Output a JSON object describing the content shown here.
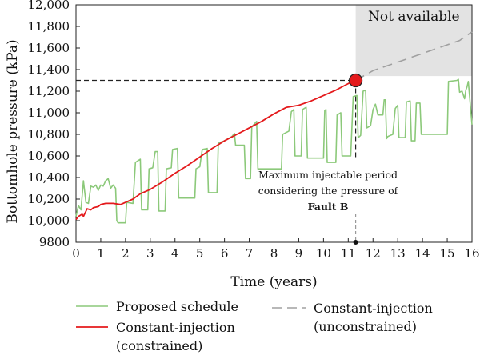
{
  "chart_data": {
    "type": "line",
    "xlabel": "Time (years)",
    "ylabel": "Bottomhole pressure (kPa)",
    "xlim": [
      0,
      16
    ],
    "ylim": [
      9800,
      12000
    ],
    "x_ticks": [
      0,
      1,
      2,
      3,
      4,
      5,
      6,
      7,
      8,
      9,
      10,
      11,
      12,
      13,
      14,
      15,
      16
    ],
    "x_tick_labels": [
      "0",
      "1",
      "2",
      "3",
      "4",
      "5",
      "6",
      "7",
      "8",
      "9",
      "10",
      "11",
      "12",
      "13",
      "14",
      "15",
      "16"
    ],
    "y_ticks": [
      9800,
      10000,
      10200,
      10400,
      10600,
      10800,
      11000,
      11200,
      11400,
      11600,
      11800,
      12000
    ],
    "y_tick_labels": [
      "9800",
      "10,000",
      "10,200",
      "10,400",
      "10,600",
      "10,800",
      "11,000",
      "11,200",
      "11,400",
      "11,600",
      "11,800",
      "12,000"
    ],
    "grid": false,
    "colors": {
      "proposed": "#8cc97a",
      "constrained": "#e41a1c",
      "unconstrained": "#a0a0a0",
      "shade": "#e3e3e3",
      "marker": "#e41a1c"
    },
    "series": [
      {
        "name": "Proposed schedule",
        "style": "solid",
        "points": [
          [
            0.0,
            10040
          ],
          [
            0.1,
            10140
          ],
          [
            0.2,
            10100
          ],
          [
            0.3,
            10370
          ],
          [
            0.4,
            10170
          ],
          [
            0.5,
            10160
          ],
          [
            0.6,
            10320
          ],
          [
            0.7,
            10310
          ],
          [
            0.8,
            10330
          ],
          [
            0.9,
            10280
          ],
          [
            1.0,
            10330
          ],
          [
            1.1,
            10320
          ],
          [
            1.2,
            10370
          ],
          [
            1.3,
            10390
          ],
          [
            1.4,
            10300
          ],
          [
            1.5,
            10330
          ],
          [
            1.6,
            10300
          ],
          [
            1.65,
            10000
          ],
          [
            1.7,
            9980
          ],
          [
            2.0,
            9980
          ],
          [
            2.05,
            10170
          ],
          [
            2.3,
            10160
          ],
          [
            2.4,
            10540
          ],
          [
            2.6,
            10570
          ],
          [
            2.65,
            10100
          ],
          [
            2.9,
            10100
          ],
          [
            2.95,
            10480
          ],
          [
            3.1,
            10490
          ],
          [
            3.2,
            10640
          ],
          [
            3.3,
            10640
          ],
          [
            3.35,
            10090
          ],
          [
            3.6,
            10090
          ],
          [
            3.65,
            10480
          ],
          [
            3.85,
            10490
          ],
          [
            3.9,
            10660
          ],
          [
            4.1,
            10670
          ],
          [
            4.15,
            10210
          ],
          [
            4.8,
            10210
          ],
          [
            4.85,
            10480
          ],
          [
            5.0,
            10500
          ],
          [
            5.1,
            10660
          ],
          [
            5.3,
            10670
          ],
          [
            5.35,
            10260
          ],
          [
            5.7,
            10260
          ],
          [
            5.75,
            10720
          ],
          [
            6.0,
            10740
          ],
          [
            6.3,
            10780
          ],
          [
            6.4,
            10810
          ],
          [
            6.45,
            10700
          ],
          [
            6.8,
            10700
          ],
          [
            6.85,
            10390
          ],
          [
            7.05,
            10390
          ],
          [
            7.1,
            10870
          ],
          [
            7.3,
            10920
          ],
          [
            7.35,
            10480
          ],
          [
            8.3,
            10480
          ],
          [
            8.35,
            10800
          ],
          [
            8.6,
            10830
          ],
          [
            8.7,
            11010
          ],
          [
            8.8,
            11030
          ],
          [
            8.85,
            10600
          ],
          [
            9.1,
            10600
          ],
          [
            9.15,
            11030
          ],
          [
            9.3,
            11050
          ],
          [
            9.35,
            10580
          ],
          [
            10.0,
            10580
          ],
          [
            10.05,
            11020
          ],
          [
            10.1,
            11030
          ],
          [
            10.15,
            10540
          ],
          [
            10.5,
            10540
          ],
          [
            10.55,
            10980
          ],
          [
            10.7,
            11000
          ],
          [
            10.75,
            10600
          ],
          [
            11.1,
            10600
          ],
          [
            11.2,
            11150
          ],
          [
            11.35,
            11160
          ],
          [
            11.4,
            10770
          ],
          [
            11.5,
            10790
          ],
          [
            11.6,
            11200
          ],
          [
            11.7,
            11210
          ],
          [
            11.75,
            10860
          ],
          [
            11.9,
            10880
          ],
          [
            12.0,
            11030
          ],
          [
            12.1,
            11080
          ],
          [
            12.2,
            10980
          ],
          [
            12.4,
            10980
          ],
          [
            12.45,
            11120
          ],
          [
            12.5,
            11120
          ],
          [
            12.55,
            10760
          ],
          [
            12.6,
            10780
          ],
          [
            12.8,
            10800
          ],
          [
            12.9,
            11040
          ],
          [
            13.0,
            11070
          ],
          [
            13.05,
            10770
          ],
          [
            13.3,
            10770
          ],
          [
            13.35,
            11100
          ],
          [
            13.5,
            11110
          ],
          [
            13.55,
            10740
          ],
          [
            13.7,
            10740
          ],
          [
            13.75,
            11090
          ],
          [
            13.9,
            11090
          ],
          [
            13.95,
            10800
          ],
          [
            15.0,
            10800
          ],
          [
            15.05,
            11290
          ],
          [
            15.4,
            11300
          ],
          [
            15.45,
            11310
          ],
          [
            15.5,
            11190
          ],
          [
            15.6,
            11200
          ],
          [
            15.7,
            11130
          ],
          [
            15.75,
            11210
          ],
          [
            15.8,
            11240
          ],
          [
            15.85,
            11290
          ],
          [
            16.0,
            10890
          ]
        ]
      },
      {
        "name": "Constant-injection (constrained)",
        "style": "solid",
        "points": [
          [
            0.0,
            10010
          ],
          [
            0.1,
            10040
          ],
          [
            0.25,
            10060
          ],
          [
            0.3,
            10040
          ],
          [
            0.45,
            10110
          ],
          [
            0.6,
            10100
          ],
          [
            0.7,
            10120
          ],
          [
            0.9,
            10130
          ],
          [
            1.0,
            10150
          ],
          [
            1.2,
            10160
          ],
          [
            1.5,
            10160
          ],
          [
            1.8,
            10150
          ],
          [
            2.0,
            10170
          ],
          [
            2.3,
            10200
          ],
          [
            2.6,
            10250
          ],
          [
            3.0,
            10290
          ],
          [
            3.5,
            10360
          ],
          [
            4.0,
            10440
          ],
          [
            4.5,
            10510
          ],
          [
            5.0,
            10590
          ],
          [
            5.5,
            10670
          ],
          [
            6.0,
            10740
          ],
          [
            6.5,
            10800
          ],
          [
            7.0,
            10860
          ],
          [
            7.5,
            10920
          ],
          [
            8.0,
            10990
          ],
          [
            8.5,
            11050
          ],
          [
            9.0,
            11070
          ],
          [
            9.5,
            11110
          ],
          [
            10.0,
            11160
          ],
          [
            10.5,
            11210
          ],
          [
            11.0,
            11270
          ],
          [
            11.3,
            11300
          ]
        ]
      },
      {
        "name": "Constant-injection (unconstrained)",
        "style": "dashed",
        "points": [
          [
            11.3,
            11300
          ],
          [
            12.0,
            11390
          ],
          [
            13.0,
            11470
          ],
          [
            14.0,
            11550
          ],
          [
            15.0,
            11630
          ],
          [
            15.5,
            11670
          ],
          [
            16.0,
            11750
          ]
        ]
      }
    ],
    "shaded_region": {
      "label": "Not available",
      "x": [
        11.3,
        16
      ],
      "y": [
        11340,
        12000
      ]
    },
    "marker": {
      "x": 11.3,
      "y": 11300
    },
    "reference_lines": [
      {
        "type": "horizontal",
        "y": 11300,
        "x_from": 0,
        "x_to": 11.3
      },
      {
        "type": "vertical",
        "x": 11.3,
        "y_from": 9800,
        "y_to": 11300
      }
    ],
    "annotation": {
      "lines": [
        "Maximum injectable period",
        "considering the pressure of",
        "Fault B"
      ],
      "bold_line_index": 2
    },
    "legend": {
      "position": "bottom",
      "entries": [
        {
          "label_lines": [
            "Proposed schedule"
          ],
          "series_index": 0
        },
        {
          "label_lines": [
            "Constant-injection",
            "(constrained)"
          ],
          "series_index": 1
        },
        {
          "label_lines": [
            "Constant-injection",
            "(unconstrained)"
          ],
          "series_index": 2
        }
      ]
    }
  }
}
